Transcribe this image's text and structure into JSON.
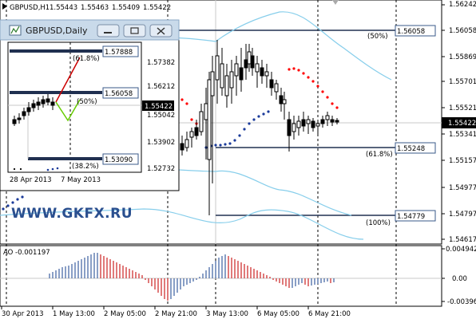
{
  "main_chart": {
    "symbol_info": "GBPUSD,H1",
    "ohlc": [
      "1.55443",
      "1.55463",
      "1.55409",
      "1.55422"
    ],
    "price_axis": [
      "1.56242",
      "1.56058",
      "1.55869",
      "1.55701",
      "1.55521",
      "1.55341",
      "1.55157",
      "1.54977",
      "1.54797",
      "1.54617"
    ],
    "current_price": "1.55422",
    "fib_levels": [
      {
        "percent": "(50%)",
        "price": "1.56058"
      },
      {
        "percent": "(61.8%)",
        "price": "1.55248"
      },
      {
        "percent": "(100%)",
        "price": "1.54779"
      }
    ],
    "time_axis": [
      "30 Apr 2013",
      "1 May 13:00",
      "2 May 05:00",
      "2 May 21:00",
      "3 May 13:00",
      "6 May 05:00",
      "6 May 21:00"
    ]
  },
  "oscillator": {
    "label": "AO -0.001197",
    "axis": [
      "0.004942",
      "0.00",
      "-0.00396"
    ]
  },
  "inset_window": {
    "title": "GBPUSD,Daily",
    "controls": {
      "minimize": "minimize",
      "restore": "restore",
      "close": "close"
    },
    "price_axis": [
      "1.57382",
      "1.56212",
      "1.55042",
      "1.53902",
      "1.52732"
    ],
    "current_price": "1.55422",
    "fib_levels": [
      {
        "percent": "(61.8%)",
        "price": "1.57888"
      },
      {
        "percent": "(50%)",
        "price": "1.56058"
      },
      {
        "percent": "(38.2%)",
        "price": "1.53090"
      }
    ],
    "time_axis": [
      "28 Apr 2013",
      "7 May 2013"
    ]
  },
  "watermark": "WWW.GKFX.RU",
  "colors": {
    "levels": "#203050",
    "label_border": "#3a5a8a",
    "bands": "#87ceeb",
    "sar_red": "#ff0000",
    "sar_blue": "#1a3a9a",
    "ao_red": "#cc2222",
    "ao_blue": "#3b5fa0",
    "zigzag_red": "#cc0000",
    "zigzag_green": "#66cc00"
  }
}
